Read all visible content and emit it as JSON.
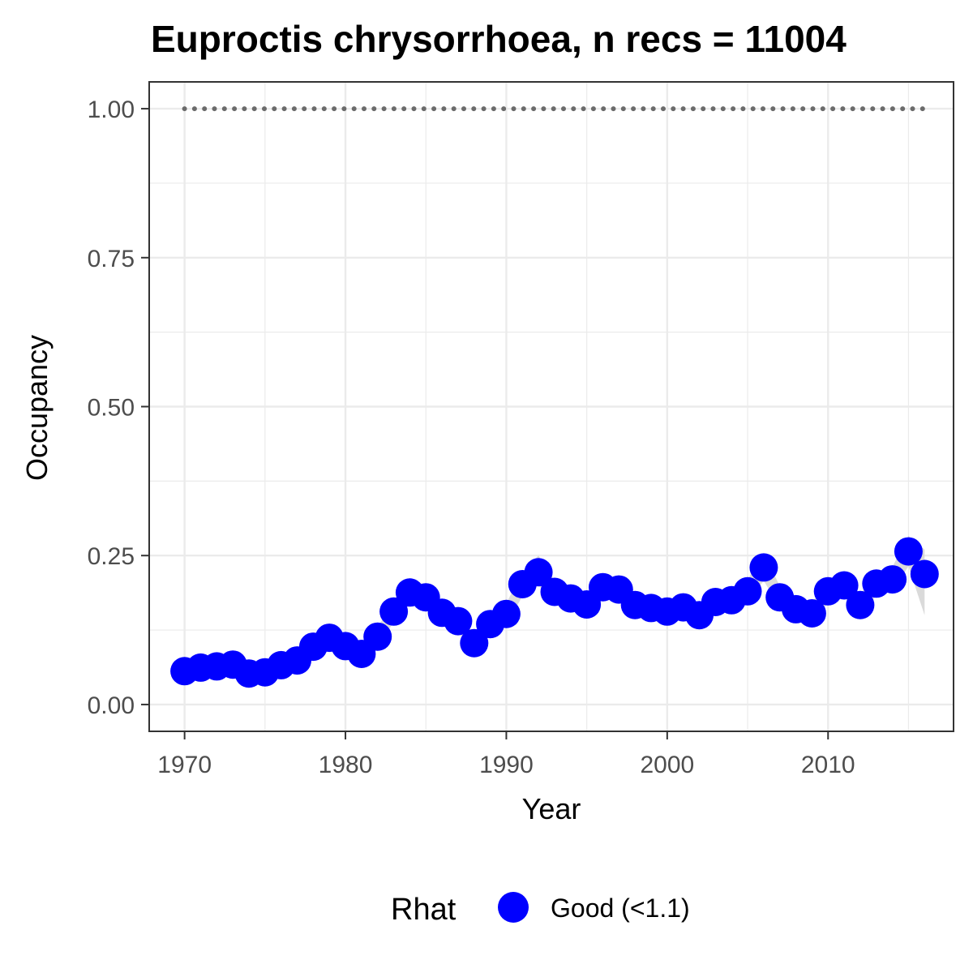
{
  "chart_data": {
    "type": "line",
    "title": "Euproctis chrysorrhoea, n recs = 11004",
    "xlabel": "Year",
    "ylabel": "Occupancy",
    "xlim": [
      1967.8,
      2017.8
    ],
    "ylim": [
      -0.045,
      1.045
    ],
    "x_ticks": [
      1970,
      1980,
      1990,
      2000,
      2010
    ],
    "x_tick_labels": [
      "1970",
      "1980",
      "1990",
      "2000",
      "2010"
    ],
    "y_ticks": [
      0,
      0.25,
      0.5,
      0.75,
      1
    ],
    "y_tick_labels": [
      "0.00",
      "0.25",
      "0.50",
      "0.75",
      "1.00"
    ],
    "grid": true,
    "legend": {
      "title": "Rhat",
      "position": "bottom",
      "entries": [
        {
          "label": "Good (<1.1)",
          "color": "#0000ff"
        }
      ]
    },
    "colors": {
      "points": "#0000ff",
      "ribbon": "#d3d3d3",
      "reference_line": "#6b6b6b",
      "grid": "#ebebeb",
      "panel_border": "#333333"
    },
    "series": [
      {
        "name": "Good (<1.1)",
        "x": [
          1970,
          1971,
          1972,
          1973,
          1974,
          1975,
          1976,
          1977,
          1978,
          1979,
          1980,
          1981,
          1982,
          1983,
          1984,
          1985,
          1986,
          1987,
          1988,
          1989,
          1990,
          1991,
          1992,
          1993,
          1994,
          1995,
          1996,
          1997,
          1998,
          1999,
          2000,
          2001,
          2002,
          2003,
          2004,
          2005,
          2006,
          2007,
          2008,
          2009,
          2010,
          2011,
          2012,
          2013,
          2014,
          2015,
          2016
        ],
        "y": [
          0.056,
          0.062,
          0.064,
          0.067,
          0.052,
          0.054,
          0.066,
          0.074,
          0.097,
          0.112,
          0.098,
          0.085,
          0.114,
          0.156,
          0.188,
          0.18,
          0.154,
          0.14,
          0.103,
          0.135,
          0.152,
          0.202,
          0.222,
          0.189,
          0.178,
          0.168,
          0.197,
          0.193,
          0.167,
          0.162,
          0.156,
          0.163,
          0.15,
          0.172,
          0.175,
          0.19,
          0.23,
          0.18,
          0.16,
          0.153,
          0.19,
          0.2,
          0.167,
          0.203,
          0.21,
          0.257,
          0.219
        ],
        "lower": [
          0.045,
          0.05,
          0.052,
          0.055,
          0.042,
          0.044,
          0.055,
          0.062,
          0.084,
          0.097,
          0.084,
          0.072,
          0.099,
          0.138,
          0.168,
          0.16,
          0.136,
          0.122,
          0.09,
          0.118,
          0.134,
          0.182,
          0.2,
          0.17,
          0.16,
          0.15,
          0.178,
          0.174,
          0.15,
          0.145,
          0.14,
          0.146,
          0.134,
          0.154,
          0.157,
          0.171,
          0.208,
          0.162,
          0.143,
          0.137,
          0.171,
          0.181,
          0.15,
          0.183,
          0.19,
          0.232,
          0.15
        ],
        "upper": [
          0.068,
          0.074,
          0.077,
          0.08,
          0.064,
          0.066,
          0.078,
          0.087,
          0.11,
          0.127,
          0.112,
          0.099,
          0.129,
          0.175,
          0.212,
          0.2,
          0.174,
          0.159,
          0.117,
          0.152,
          0.17,
          0.222,
          0.25,
          0.208,
          0.196,
          0.187,
          0.216,
          0.212,
          0.185,
          0.18,
          0.173,
          0.181,
          0.167,
          0.191,
          0.194,
          0.21,
          0.254,
          0.199,
          0.178,
          0.17,
          0.209,
          0.22,
          0.185,
          0.223,
          0.231,
          0.283,
          0.26
        ]
      }
    ],
    "reference_line": {
      "x": [
        1970,
        1971,
        1972,
        1973,
        1974,
        1975,
        1976,
        1977,
        1978,
        1979,
        1980,
        1981,
        1982,
        1983,
        1984,
        1985,
        1986,
        1987,
        1988,
        1989,
        1990,
        1991,
        1992,
        1993,
        1994,
        1995,
        1996,
        1997,
        1998,
        1999,
        2000,
        2001,
        2002,
        2003,
        2004,
        2005,
        2006,
        2007,
        2008,
        2009,
        2010,
        2011,
        2012,
        2013,
        2014,
        2015,
        2016
      ],
      "y": [
        1,
        1,
        1,
        1,
        1,
        1,
        1,
        1,
        1,
        1,
        1,
        1,
        1,
        1,
        1,
        1,
        1,
        1,
        1,
        1,
        1,
        1,
        1,
        1,
        1,
        1,
        1,
        1,
        1,
        1,
        1,
        1,
        1,
        1,
        1,
        1,
        1,
        1,
        1,
        1,
        1,
        1,
        1,
        1,
        1,
        1,
        1
      ]
    }
  }
}
